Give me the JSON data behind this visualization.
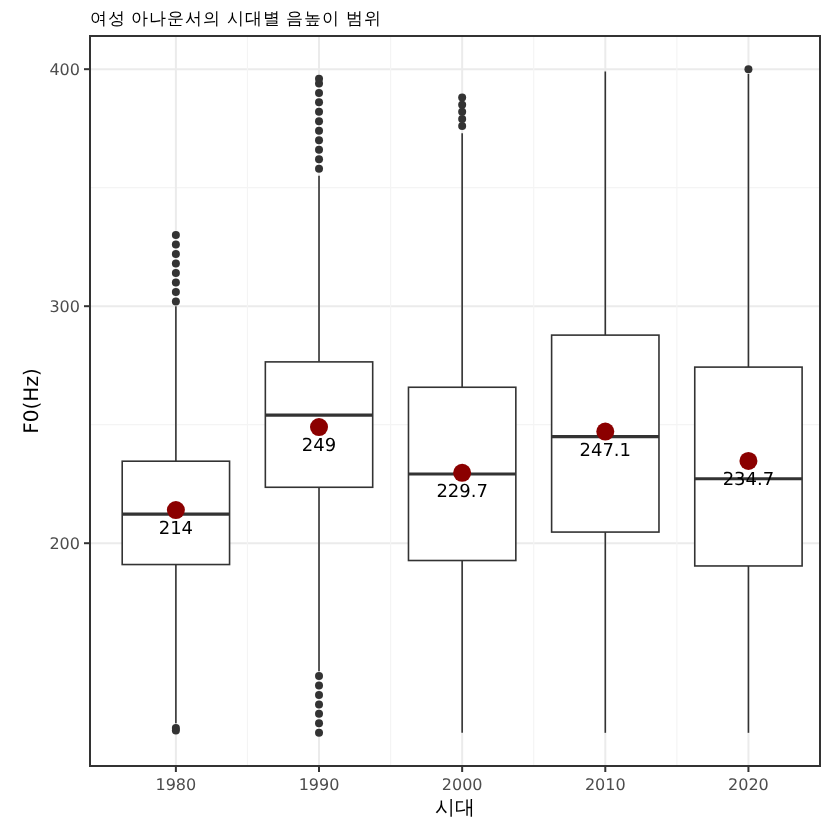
{
  "chart_data": {
    "type": "box",
    "title": "여성 아나운서의 시대별 음높이 범위",
    "xlabel": "시대",
    "ylabel": "F0(Hz)",
    "categories": [
      "1980",
      "1990",
      "2000",
      "2010",
      "2020"
    ],
    "ylim": [
      106,
      414
    ],
    "yticks": [
      200,
      300,
      400
    ],
    "grid": true,
    "data_labels": true,
    "color": "#333333",
    "boxes": [
      {
        "low": 124,
        "q1": 191,
        "median": 212.3,
        "q3": 234.6,
        "high": 300,
        "outliers": [
          121,
          122,
          302,
          306,
          310,
          314,
          318,
          322,
          326,
          330
        ]
      },
      {
        "low": 146,
        "q1": 223.6,
        "median": 254,
        "q3": 276.5,
        "high": 355,
        "outliers": [
          120,
          124,
          128,
          132,
          136,
          140,
          144,
          358,
          362,
          366,
          370,
          374,
          378,
          382,
          386,
          390,
          394,
          396
        ]
      },
      {
        "low": 120,
        "q1": 192.7,
        "median": 229.2,
        "q3": 265.8,
        "high": 373,
        "outliers": [
          376,
          379,
          382,
          385,
          388
        ]
      },
      {
        "low": 120,
        "q1": 204.7,
        "median": 245,
        "q3": 287.8,
        "high": 399
      },
      {
        "low": 120,
        "q1": 190.4,
        "median": 227.2,
        "q3": 274.3,
        "high": 398,
        "outliers": [
          400
        ]
      }
    ],
    "series": [
      {
        "type": "scatter",
        "color": "#8b0000",
        "values": [
          214,
          249,
          229.7,
          247.1,
          234.7
        ]
      }
    ]
  }
}
